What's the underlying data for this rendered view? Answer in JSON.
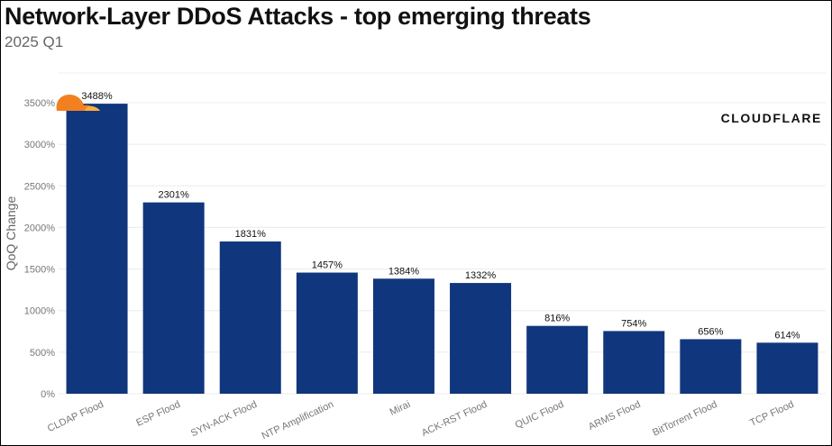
{
  "chart_data": {
    "type": "bar",
    "title": "Network-Layer DDoS Attacks - top emerging threats",
    "subtitle": "2025 Q1",
    "xlabel": "",
    "ylabel": "QoQ Change",
    "categories": [
      "CLDAP Flood",
      "ESP Flood",
      "SYN-ACK Flood",
      "NTP Amplification",
      "Mirai",
      "ACK-RST Flood",
      "QUIC Flood",
      "ARMS Flood",
      "BitTorrent Flood",
      "TCP Flood"
    ],
    "values": [
      3488,
      2301,
      1831,
      1457,
      1384,
      1332,
      816,
      754,
      656,
      614
    ],
    "data_labels": [
      "3488%",
      "2301%",
      "1831%",
      "1457%",
      "1384%",
      "1332%",
      "816%",
      "754%",
      "656%",
      "614%"
    ],
    "ylim": [
      0,
      3850
    ],
    "yticks": [
      0,
      500,
      1000,
      1500,
      2000,
      2500,
      3000,
      3500
    ],
    "ytick_labels": [
      "0%",
      "500%",
      "1000%",
      "1500%",
      "2000%",
      "2500%",
      "3000%",
      "3500%"
    ],
    "grid": true,
    "bar_color": "#10367d"
  },
  "logo": {
    "text": "CLOUDFLARE",
    "color": "#f38020"
  }
}
